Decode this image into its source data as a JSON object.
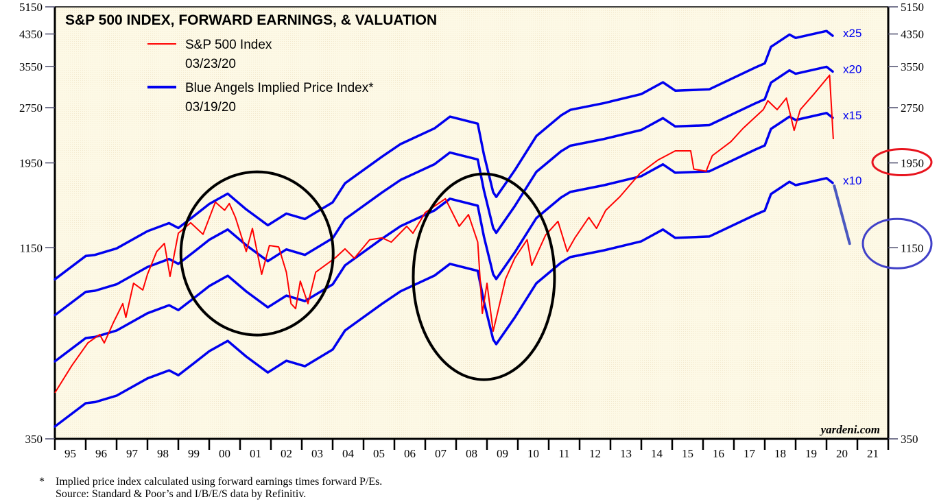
{
  "chart_data": {
    "type": "line",
    "title": "S&P 500 INDEX, FORWARD EARNINGS, & VALUATION",
    "xlabel": "",
    "ylabel": "",
    "y_scale": "log",
    "ylim": [
      350,
      5150
    ],
    "xlim": [
      1995,
      2022
    ],
    "y_ticks": [
      350,
      1150,
      1950,
      2750,
      3550,
      4350,
      5150
    ],
    "x_tick_labels": [
      "95",
      "96",
      "97",
      "98",
      "99",
      "00",
      "01",
      "02",
      "03",
      "04",
      "05",
      "06",
      "07",
      "08",
      "09",
      "10",
      "11",
      "12",
      "13",
      "14",
      "15",
      "16",
      "17",
      "18",
      "19",
      "20",
      "21"
    ],
    "grid": false,
    "legend_position": "top-left",
    "legend": [
      {
        "label": "S&P 500 Index",
        "date": "03/23/20",
        "color": "#ff0000"
      },
      {
        "label": "Blue Angels Implied Price Index*",
        "date": "03/19/20",
        "color": "#0000ee"
      }
    ],
    "series": [
      {
        "name": "S&P 500 Index",
        "color": "#ff0000",
        "x": [
          1995.0,
          1995.55,
          1996.07,
          1996.45,
          1996.6,
          1996.9,
          1997.2,
          1997.3,
          1997.55,
          1997.85,
          1998.0,
          1998.3,
          1998.55,
          1998.73,
          1999.0,
          1999.4,
          1999.8,
          2000.2,
          2000.5,
          2000.65,
          2000.85,
          2001.2,
          2001.4,
          2001.7,
          2001.95,
          2002.25,
          2002.5,
          2002.65,
          2002.8,
          2002.95,
          2003.2,
          2003.45,
          2004.07,
          2004.4,
          2004.7,
          2005.2,
          2005.6,
          2005.9,
          2006.4,
          2006.6,
          2007.0,
          2007.65,
          2008.1,
          2008.4,
          2008.7,
          2008.85,
          2009.0,
          2009.2,
          2009.6,
          2009.9,
          2010.3,
          2010.45,
          2010.9,
          2011.3,
          2011.6,
          2011.85,
          2012.3,
          2012.55,
          2012.85,
          2013.3,
          2013.95,
          2014.55,
          2015.1,
          2015.6,
          2015.7,
          2016.1,
          2016.3,
          2016.9,
          2017.3,
          2017.95,
          2018.1,
          2018.4,
          2018.7,
          2018.95,
          2019.15,
          2019.6,
          2020.1,
          2020.22
        ],
        "values": [
          466,
          552,
          636,
          670,
          636,
          723,
          812,
          745,
          922,
          884,
          975,
          1123,
          1181,
          962,
          1259,
          1343,
          1250,
          1528,
          1452,
          1514,
          1389,
          1123,
          1297,
          975,
          1166,
          1156,
          988,
          812,
          787,
          934,
          812,
          988,
          1077,
          1142,
          1077,
          1209,
          1223,
          1191,
          1314,
          1259,
          1432,
          1560,
          1314,
          1413,
          1191,
          764,
          922,
          684,
          946,
          1077,
          1209,
          1030,
          1245,
          1355,
          1123,
          1223,
          1389,
          1297,
          1452,
          1578,
          1825,
          1987,
          2102,
          2102,
          1875,
          1852,
          2040,
          2224,
          2420,
          2716,
          2871,
          2716,
          2918,
          2388,
          2716,
          2998,
          3367,
          2260
        ]
      },
      {
        "name": "Blue Angels Implied Price Index*",
        "color": "#0000ee",
        "multipliers": [
          "x10",
          "x15",
          "x20",
          "x25"
        ],
        "multiplier_values": [
          10,
          15,
          20,
          25
        ],
        "x": [
          1995.0,
          1996.0,
          1996.3,
          1997.0,
          1998.0,
          1998.7,
          1999.0,
          1999.5,
          2000.0,
          2000.6,
          2001.2,
          2001.9,
          2002.5,
          2003.1,
          2004.0,
          2004.4,
          2005.6,
          2006.2,
          2007.3,
          2007.8,
          2008.7,
          2008.9,
          2009.2,
          2009.3,
          2009.9,
          2010.6,
          2011.4,
          2011.7,
          2012.8,
          2014.0,
          2014.7,
          2015.1,
          2016.2,
          2017.7,
          2018.0,
          2018.2,
          2018.8,
          2019.0,
          2020.0,
          2020.2
        ],
        "forward_earnings_x10": [
          378,
          437,
          440,
          458,
          510,
          536,
          520,
          560,
          604,
          644,
          584,
          529,
          569,
          550,
          610,
          687,
          811,
          877,
          967,
          1040,
          996,
          822,
          650,
          631,
          745,
          922,
          1048,
          1085,
          1132,
          1197,
          1288,
          1223,
          1233,
          1413,
          1449,
          1606,
          1734,
          1698,
          1773,
          1721
        ]
      }
    ],
    "annotations": [
      {
        "type": "ellipse",
        "color": "#000000",
        "label": "2000-2002 bear market circle"
      },
      {
        "type": "ellipse",
        "color": "#000000",
        "label": "2008-2009 bear market circle"
      },
      {
        "type": "ellipse",
        "color": "#e8141e",
        "label": "1950 axis highlight"
      },
      {
        "type": "ellipse",
        "color": "#4040c8",
        "label": "1150 axis highlight"
      },
      {
        "type": "line",
        "color": "#4a58c0",
        "label": "projected x10 drop"
      }
    ],
    "watermark": "yardeni.com"
  },
  "footnote": {
    "star": "*",
    "line1": "Implied price index calculated using forward earnings times forward P/Es.",
    "line2": "Source: Standard & Poor’s and I/B/E/S data by Refinitiv."
  }
}
